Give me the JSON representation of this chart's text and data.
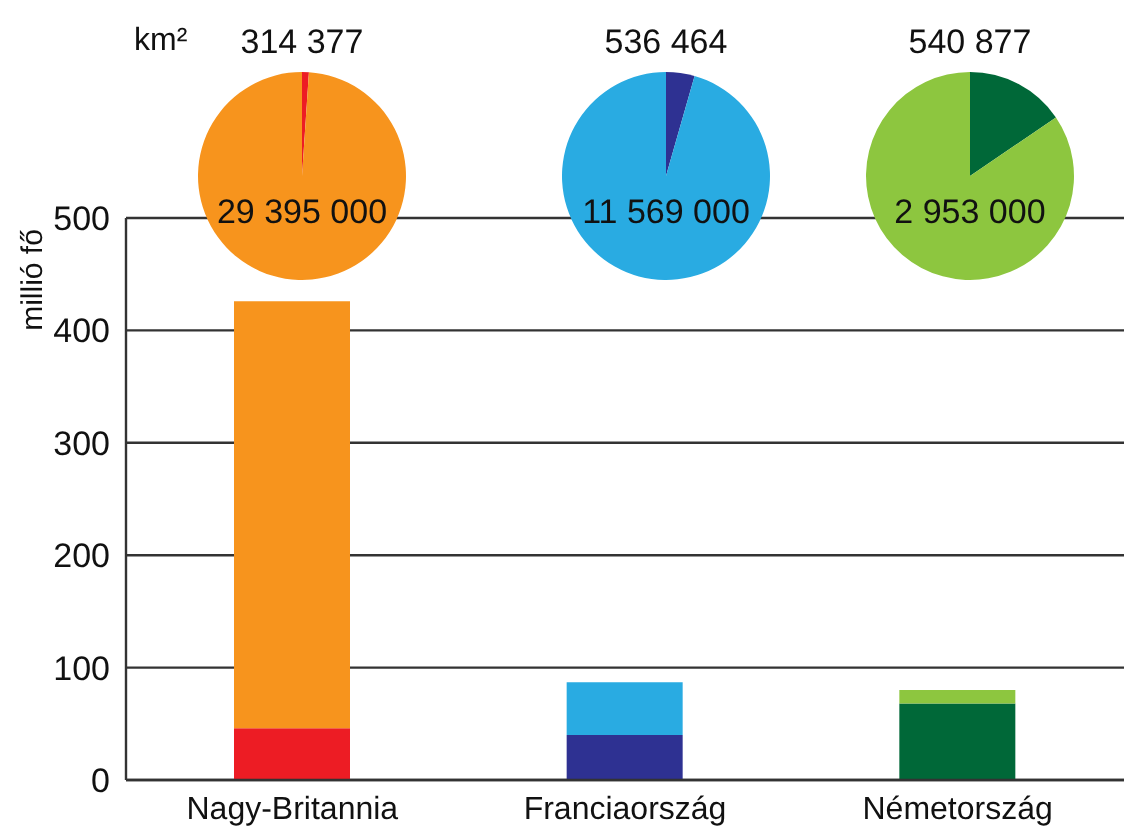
{
  "chart_data": [
    {
      "type": "bar",
      "stacked": true,
      "ylabel": "millió fő",
      "categories": [
        "Nagy-Britannia",
        "Franciaország",
        "Németország"
      ],
      "series": [
        {
          "colors": [
            "#ed1c24",
            "#2e3192",
            "#006838"
          ],
          "values": [
            46,
            40,
            68
          ]
        },
        {
          "colors": [
            "#f7941d",
            "#29abe2",
            "#8dc63f"
          ],
          "values": [
            380,
            47,
            12
          ]
        }
      ],
      "ylim": [
        0,
        500
      ],
      "yticks": [
        0,
        100,
        200,
        300,
        400,
        500
      ],
      "grid": "y",
      "legend": false
    },
    {
      "type": "pie",
      "title": "km²",
      "categories": [
        null,
        null
      ],
      "values": [
        314377,
        29395000
      ],
      "colors": [
        "#ed1c24",
        "#f7941d"
      ],
      "data_labels": true
    },
    {
      "type": "pie",
      "categories": [
        null,
        null
      ],
      "values": [
        536464,
        11569000
      ],
      "colors": [
        "#2e3192",
        "#29abe2"
      ],
      "data_labels": true
    },
    {
      "type": "pie",
      "categories": [
        null,
        null
      ],
      "values": [
        540877,
        2953000
      ],
      "colors": [
        "#006838",
        "#8dc63f"
      ],
      "data_labels": true
    }
  ]
}
